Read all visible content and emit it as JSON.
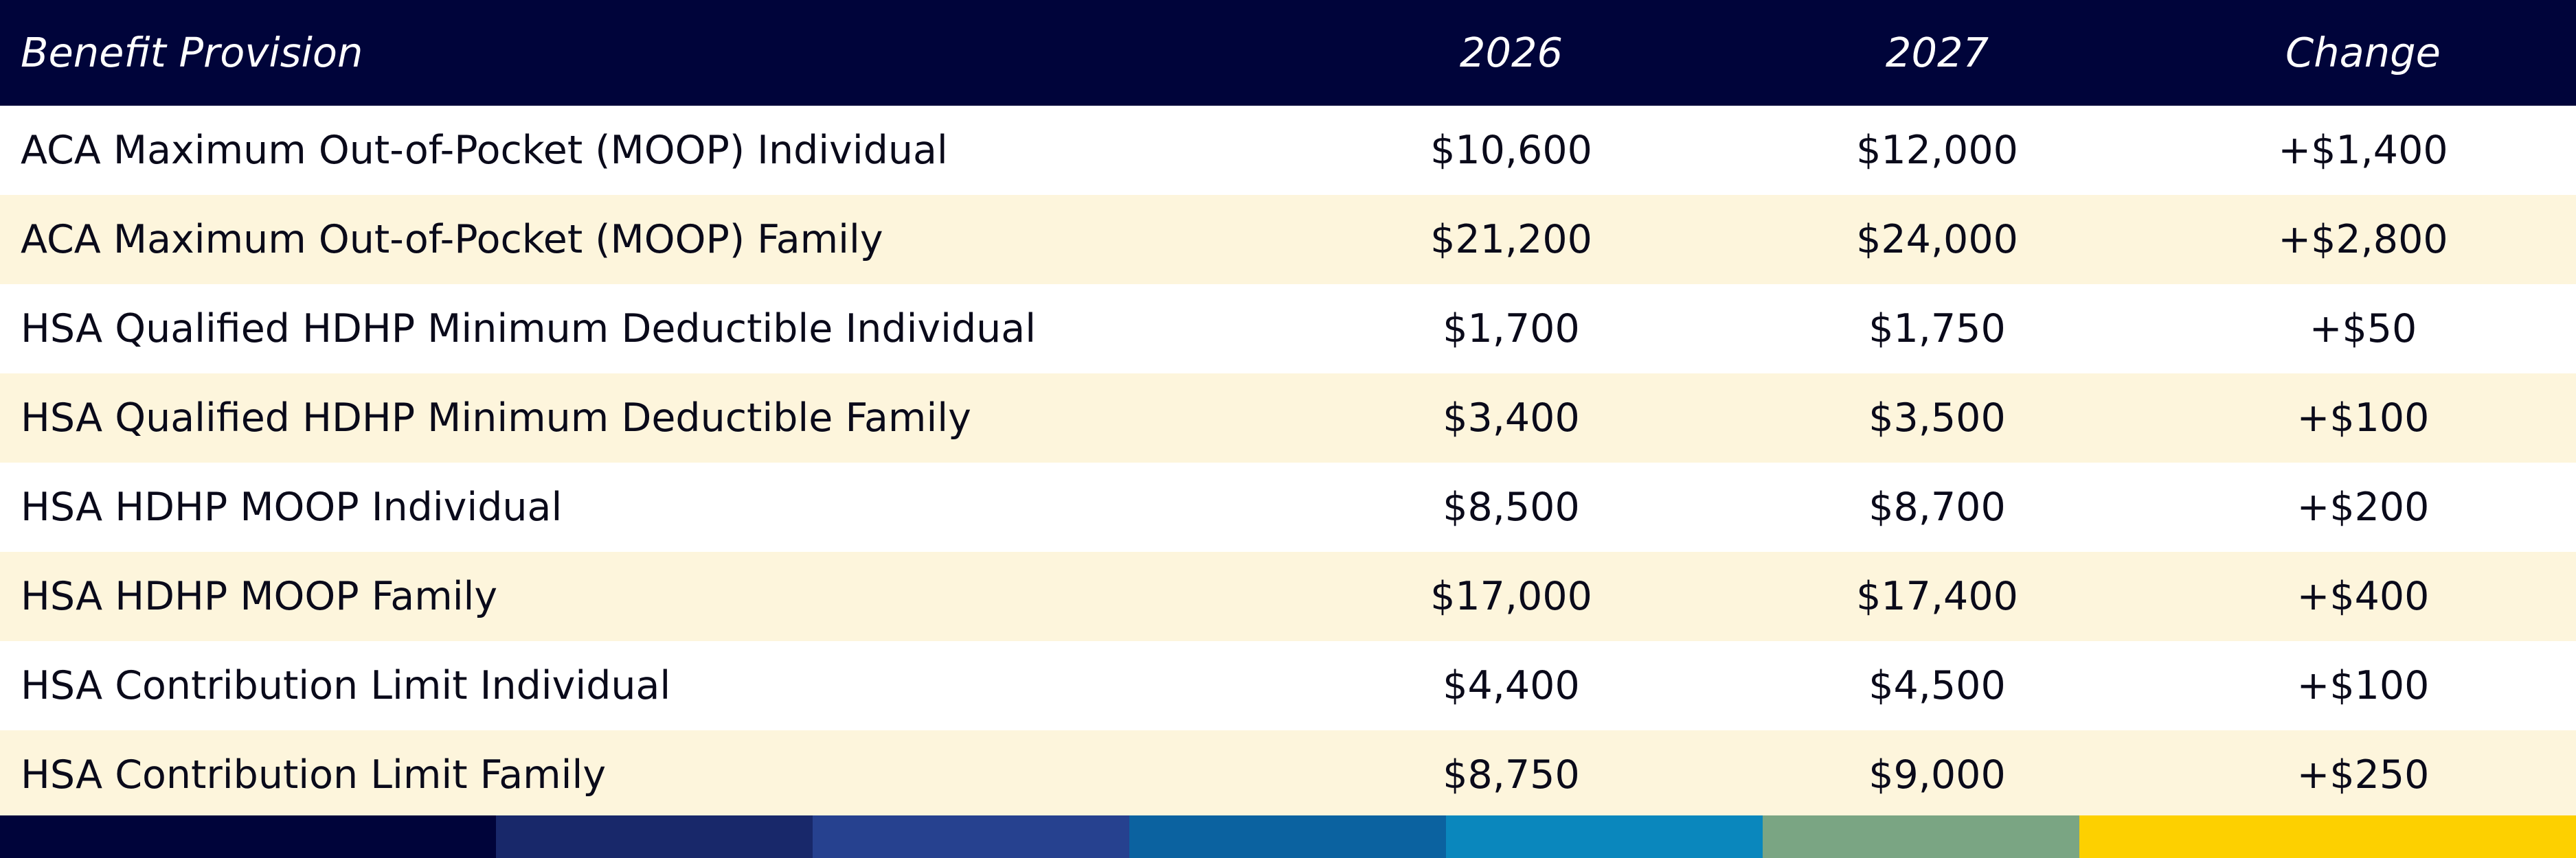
{
  "header": {
    "col_label": "Benefit Provision",
    "col_2026": "2026",
    "col_2027": "2027",
    "col_change": "Change"
  },
  "rows": [
    {
      "label": "ACA Maximum Out-of-Pocket (MOOP) Individual",
      "y2026": "$10,600",
      "y2027": "$12,000",
      "change": "+$1,400"
    },
    {
      "label": "ACA Maximum Out-of-Pocket (MOOP) Family",
      "y2026": "$21,200",
      "y2027": "$24,000",
      "change": "+$2,800"
    },
    {
      "label": "HSA Qualified HDHP Minimum Deductible Individual",
      "y2026": "$1,700",
      "y2027": "$1,750",
      "change": "+$50"
    },
    {
      "label": "HSA Qualified HDHP Minimum Deductible Family",
      "y2026": "$3,400",
      "y2027": "$3,500",
      "change": "+$100"
    },
    {
      "label": "HSA HDHP MOOP Individual",
      "y2026": "$8,500",
      "y2027": "$8,700",
      "change": "+$200"
    },
    {
      "label": "HSA HDHP MOOP Family",
      "y2026": "$17,000",
      "y2027": "$17,400",
      "change": "+$400"
    },
    {
      "label": "HSA Contribution Limit Individual",
      "y2026": "$4,400",
      "y2027": "$4,500",
      "change": "+$100"
    },
    {
      "label": "HSA Contribution Limit Family",
      "y2026": "$8,750",
      "y2027": "$9,000",
      "change": "+$250"
    }
  ],
  "colors": {
    "header_bg": "#00043a",
    "row_alt_bg": "#fdf5dc",
    "footer_stripes": [
      "#00043a",
      "#18286a",
      "#26418f",
      "#0b62a0",
      "#0a87bd",
      "#7aa583",
      "#fdd000"
    ]
  }
}
